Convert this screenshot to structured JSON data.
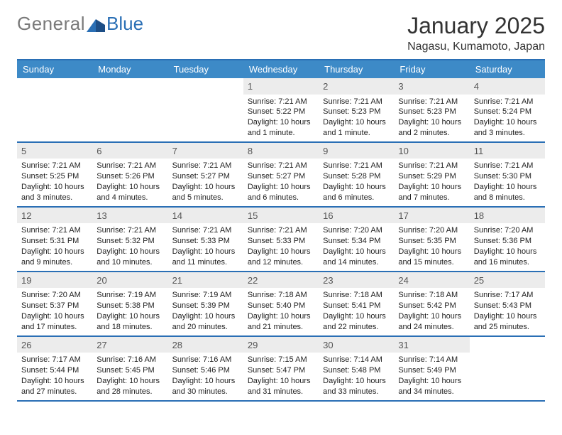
{
  "brand": {
    "general": "General",
    "blue": "Blue"
  },
  "title": "January 2025",
  "location": "Nagasu, Kumamoto, Japan",
  "colors": {
    "header_bg": "#3d8ac7",
    "rule": "#2a6fb5",
    "daynum_bg": "#ececec",
    "text": "#222222",
    "logo_gray": "#7a7a7a",
    "logo_blue": "#2a6fb5"
  },
  "day_names": [
    "Sunday",
    "Monday",
    "Tuesday",
    "Wednesday",
    "Thursday",
    "Friday",
    "Saturday"
  ],
  "weeks": [
    [
      {
        "blank": true
      },
      {
        "blank": true
      },
      {
        "blank": true
      },
      {
        "n": "1",
        "sr": "7:21 AM",
        "ss": "5:22 PM",
        "dl": "10 hours and 1 minute."
      },
      {
        "n": "2",
        "sr": "7:21 AM",
        "ss": "5:23 PM",
        "dl": "10 hours and 1 minute."
      },
      {
        "n": "3",
        "sr": "7:21 AM",
        "ss": "5:23 PM",
        "dl": "10 hours and 2 minutes."
      },
      {
        "n": "4",
        "sr": "7:21 AM",
        "ss": "5:24 PM",
        "dl": "10 hours and 3 minutes."
      }
    ],
    [
      {
        "n": "5",
        "sr": "7:21 AM",
        "ss": "5:25 PM",
        "dl": "10 hours and 3 minutes."
      },
      {
        "n": "6",
        "sr": "7:21 AM",
        "ss": "5:26 PM",
        "dl": "10 hours and 4 minutes."
      },
      {
        "n": "7",
        "sr": "7:21 AM",
        "ss": "5:27 PM",
        "dl": "10 hours and 5 minutes."
      },
      {
        "n": "8",
        "sr": "7:21 AM",
        "ss": "5:27 PM",
        "dl": "10 hours and 6 minutes."
      },
      {
        "n": "9",
        "sr": "7:21 AM",
        "ss": "5:28 PM",
        "dl": "10 hours and 6 minutes."
      },
      {
        "n": "10",
        "sr": "7:21 AM",
        "ss": "5:29 PM",
        "dl": "10 hours and 7 minutes."
      },
      {
        "n": "11",
        "sr": "7:21 AM",
        "ss": "5:30 PM",
        "dl": "10 hours and 8 minutes."
      }
    ],
    [
      {
        "n": "12",
        "sr": "7:21 AM",
        "ss": "5:31 PM",
        "dl": "10 hours and 9 minutes."
      },
      {
        "n": "13",
        "sr": "7:21 AM",
        "ss": "5:32 PM",
        "dl": "10 hours and 10 minutes."
      },
      {
        "n": "14",
        "sr": "7:21 AM",
        "ss": "5:33 PM",
        "dl": "10 hours and 11 minutes."
      },
      {
        "n": "15",
        "sr": "7:21 AM",
        "ss": "5:33 PM",
        "dl": "10 hours and 12 minutes."
      },
      {
        "n": "16",
        "sr": "7:20 AM",
        "ss": "5:34 PM",
        "dl": "10 hours and 14 minutes."
      },
      {
        "n": "17",
        "sr": "7:20 AM",
        "ss": "5:35 PM",
        "dl": "10 hours and 15 minutes."
      },
      {
        "n": "18",
        "sr": "7:20 AM",
        "ss": "5:36 PM",
        "dl": "10 hours and 16 minutes."
      }
    ],
    [
      {
        "n": "19",
        "sr": "7:20 AM",
        "ss": "5:37 PM",
        "dl": "10 hours and 17 minutes."
      },
      {
        "n": "20",
        "sr": "7:19 AM",
        "ss": "5:38 PM",
        "dl": "10 hours and 18 minutes."
      },
      {
        "n": "21",
        "sr": "7:19 AM",
        "ss": "5:39 PM",
        "dl": "10 hours and 20 minutes."
      },
      {
        "n": "22",
        "sr": "7:18 AM",
        "ss": "5:40 PM",
        "dl": "10 hours and 21 minutes."
      },
      {
        "n": "23",
        "sr": "7:18 AM",
        "ss": "5:41 PM",
        "dl": "10 hours and 22 minutes."
      },
      {
        "n": "24",
        "sr": "7:18 AM",
        "ss": "5:42 PM",
        "dl": "10 hours and 24 minutes."
      },
      {
        "n": "25",
        "sr": "7:17 AM",
        "ss": "5:43 PM",
        "dl": "10 hours and 25 minutes."
      }
    ],
    [
      {
        "n": "26",
        "sr": "7:17 AM",
        "ss": "5:44 PM",
        "dl": "10 hours and 27 minutes."
      },
      {
        "n": "27",
        "sr": "7:16 AM",
        "ss": "5:45 PM",
        "dl": "10 hours and 28 minutes."
      },
      {
        "n": "28",
        "sr": "7:16 AM",
        "ss": "5:46 PM",
        "dl": "10 hours and 30 minutes."
      },
      {
        "n": "29",
        "sr": "7:15 AM",
        "ss": "5:47 PM",
        "dl": "10 hours and 31 minutes."
      },
      {
        "n": "30",
        "sr": "7:14 AM",
        "ss": "5:48 PM",
        "dl": "10 hours and 33 minutes."
      },
      {
        "n": "31",
        "sr": "7:14 AM",
        "ss": "5:49 PM",
        "dl": "10 hours and 34 minutes."
      },
      {
        "blank": true
      }
    ]
  ],
  "labels": {
    "sunrise": "Sunrise:",
    "sunset": "Sunset:",
    "daylight": "Daylight:"
  }
}
